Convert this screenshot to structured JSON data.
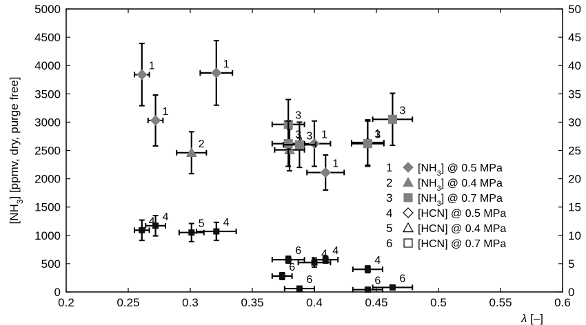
{
  "chart_data": {
    "type": "scatter",
    "xlabel_symbol": "λ",
    "xlabel_unit": "[–]",
    "ylabel": "[NH3] [ppmv, dry, purge free]",
    "ylabel_parts": [
      "[NH",
      "3",
      "] [ppmv, dry, purge free]"
    ],
    "xlim": [
      0.2,
      0.6
    ],
    "ylim": [
      0,
      5000
    ],
    "y2lim": [
      0,
      50
    ],
    "x_ticks": [
      0.2,
      0.25,
      0.3,
      0.35,
      0.4,
      0.45,
      0.5,
      0.55,
      0.6
    ],
    "x_tick_labels": [
      "0.2",
      "0.25",
      "0.3",
      "0.35",
      "0.4",
      "0.45",
      "0.5",
      "0.55",
      "0.6"
    ],
    "y_ticks": [
      0,
      500,
      1000,
      1500,
      2000,
      2500,
      3000,
      3500,
      4000,
      4500,
      5000
    ],
    "y_tick_labels": [
      "0",
      "500",
      "1000",
      "1500",
      "2000",
      "2500",
      "3000",
      "3500",
      "4000",
      "4500",
      "5000"
    ],
    "y2_ticks": [
      0,
      5,
      10,
      15,
      20,
      25,
      30,
      35,
      40,
      45,
      50
    ],
    "y2_tick_labels": [
      "0",
      "5",
      "10",
      "15",
      "20",
      "25",
      "30",
      "35",
      "40",
      "45",
      "50"
    ],
    "grid": false,
    "legend_position": "right",
    "series": [
      {
        "id": "1",
        "name_parts": [
          "[NH",
          "3",
          "] @ 0.5 MPa"
        ],
        "marker": "diamond",
        "fill": "#808080",
        "stroke": "#808080",
        "points": [
          {
            "x": 0.261,
            "y": 3840,
            "xerr": 0.006,
            "yerr": 550,
            "label": "1"
          },
          {
            "x": 0.272,
            "y": 3030,
            "xerr": 0.006,
            "yerr": 450,
            "label": "1"
          },
          {
            "x": 0.321,
            "y": 3870,
            "xerr": 0.013,
            "yerr": 570,
            "label": "1"
          },
          {
            "x": 0.4,
            "y": 2620,
            "xerr": 0.013,
            "yerr": 400,
            "label": "1"
          },
          {
            "x": 0.409,
            "y": 2110,
            "xerr": 0.015,
            "yerr": 310,
            "label": "1"
          },
          {
            "x": 0.443,
            "y": 2640,
            "xerr": 0.013,
            "yerr": 400,
            "label": "1"
          }
        ]
      },
      {
        "id": "2",
        "name_parts": [
          "[NH",
          "3",
          "] @ 0.4 MPa"
        ],
        "marker": "triangle",
        "fill": "#808080",
        "stroke": "#808080",
        "points": [
          {
            "x": 0.301,
            "y": 2460,
            "xerr": 0.012,
            "yerr": 370,
            "label": "2"
          },
          {
            "x": 0.38,
            "y": 2510,
            "xerr": 0.012,
            "yerr": 370,
            "label": "2"
          }
        ]
      },
      {
        "id": "3",
        "name_parts": [
          "[NH",
          "3",
          "] @ 0.7 MPa"
        ],
        "marker": "square",
        "fill": "#808080",
        "stroke": "#808080",
        "points": [
          {
            "x": 0.379,
            "y": 2960,
            "xerr": 0.013,
            "yerr": 440,
            "label": "3"
          },
          {
            "x": 0.379,
            "y": 2620,
            "xerr": 0.013,
            "yerr": 400,
            "label": "3"
          },
          {
            "x": 0.388,
            "y": 2600,
            "xerr": 0.013,
            "yerr": 400,
            "label": "3"
          },
          {
            "x": 0.443,
            "y": 2620,
            "xerr": 0.013,
            "yerr": 400,
            "label": "3"
          },
          {
            "x": 0.463,
            "y": 3050,
            "xerr": 0.016,
            "yerr": 460,
            "label": "3"
          }
        ]
      },
      {
        "id": "4",
        "name_parts": [
          "[HCN] @ 0.5 MPa"
        ],
        "marker": "diamond-open",
        "fill": "#ffffff",
        "stroke": "#000000",
        "points": [
          {
            "x": 0.261,
            "y": 10.9,
            "xerr": 0.006,
            "yerr": 1.8,
            "label": "4"
          },
          {
            "x": 0.272,
            "y": 11.7,
            "xerr": 0.008,
            "yerr": 1.8,
            "label": "4"
          },
          {
            "x": 0.321,
            "y": 10.7,
            "xerr": 0.016,
            "yerr": 1.6,
            "label": "4"
          },
          {
            "x": 0.4,
            "y": 5.2,
            "xerr": 0.013,
            "yerr": 0.8,
            "label": "4"
          },
          {
            "x": 0.409,
            "y": 5.7,
            "xerr": 0.01,
            "yerr": 0.6,
            "label": "4"
          },
          {
            "x": 0.443,
            "y": 4.0,
            "xerr": 0.012,
            "yerr": 0.6,
            "label": "4"
          }
        ]
      },
      {
        "id": "5",
        "name_parts": [
          "[HCN] @ 0.4 MPa"
        ],
        "marker": "triangle-open",
        "fill": "#ffffff",
        "stroke": "#000000",
        "points": [
          {
            "x": 0.301,
            "y": 10.5,
            "xerr": 0.01,
            "yerr": 1.6,
            "label": "5"
          }
        ]
      },
      {
        "id": "6",
        "name_parts": [
          "[HCN] @ 0.7 MPa"
        ],
        "marker": "square-open",
        "fill": "#ffffff",
        "stroke": "#000000",
        "points": [
          {
            "x": 0.379,
            "y": 5.7,
            "xerr": 0.013,
            "yerr": 0.6,
            "label": "6"
          },
          {
            "x": 0.374,
            "y": 2.8,
            "xerr": 0.008,
            "yerr": 0.6,
            "label": "6"
          },
          {
            "x": 0.388,
            "y": 0.6,
            "xerr": 0.012,
            "yerr": 0.4,
            "label": "6"
          },
          {
            "x": 0.443,
            "y": 0.4,
            "xerr": 0.012,
            "yerr": 0.4,
            "label": "6"
          },
          {
            "x": 0.463,
            "y": 0.8,
            "xerr": 0.016,
            "yerr": 0.4,
            "label": "6"
          }
        ]
      }
    ]
  }
}
